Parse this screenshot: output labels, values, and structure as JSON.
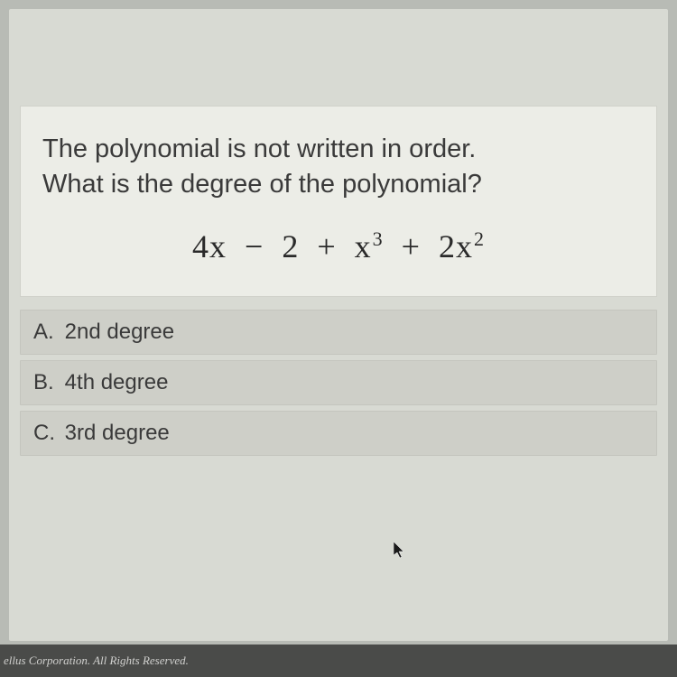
{
  "question": {
    "line1": "The polynomial is not written in order.",
    "line2": "What is the degree of the polynomial?"
  },
  "expression": {
    "html": "4x &nbsp;&minus;&nbsp; 2 &nbsp;+&nbsp; x<sup>3</sup> &nbsp;+&nbsp; 2x<sup>2</sup>",
    "plain": "4x − 2 + x^3 + 2x^2"
  },
  "options": [
    {
      "letter": "A.",
      "text": "2nd degree"
    },
    {
      "letter": "B.",
      "text": "4th degree"
    },
    {
      "letter": "C.",
      "text": "3rd degree"
    }
  ],
  "footer": "ellus Corporation.  All Rights Reserved.",
  "colors": {
    "page_bg": "#595959",
    "screen_bg": "#b8bbb5",
    "content_bg": "#d8dad3",
    "card_bg": "#ecede7",
    "option_bg": "#cecfc8",
    "text": "#3a3a3a",
    "footer_bg": "#4a4b49",
    "footer_text": "#d0d0ce"
  },
  "typography": {
    "question_fontsize": 29,
    "expression_fontsize": 36,
    "option_fontsize": 24,
    "footer_fontsize": 13
  }
}
